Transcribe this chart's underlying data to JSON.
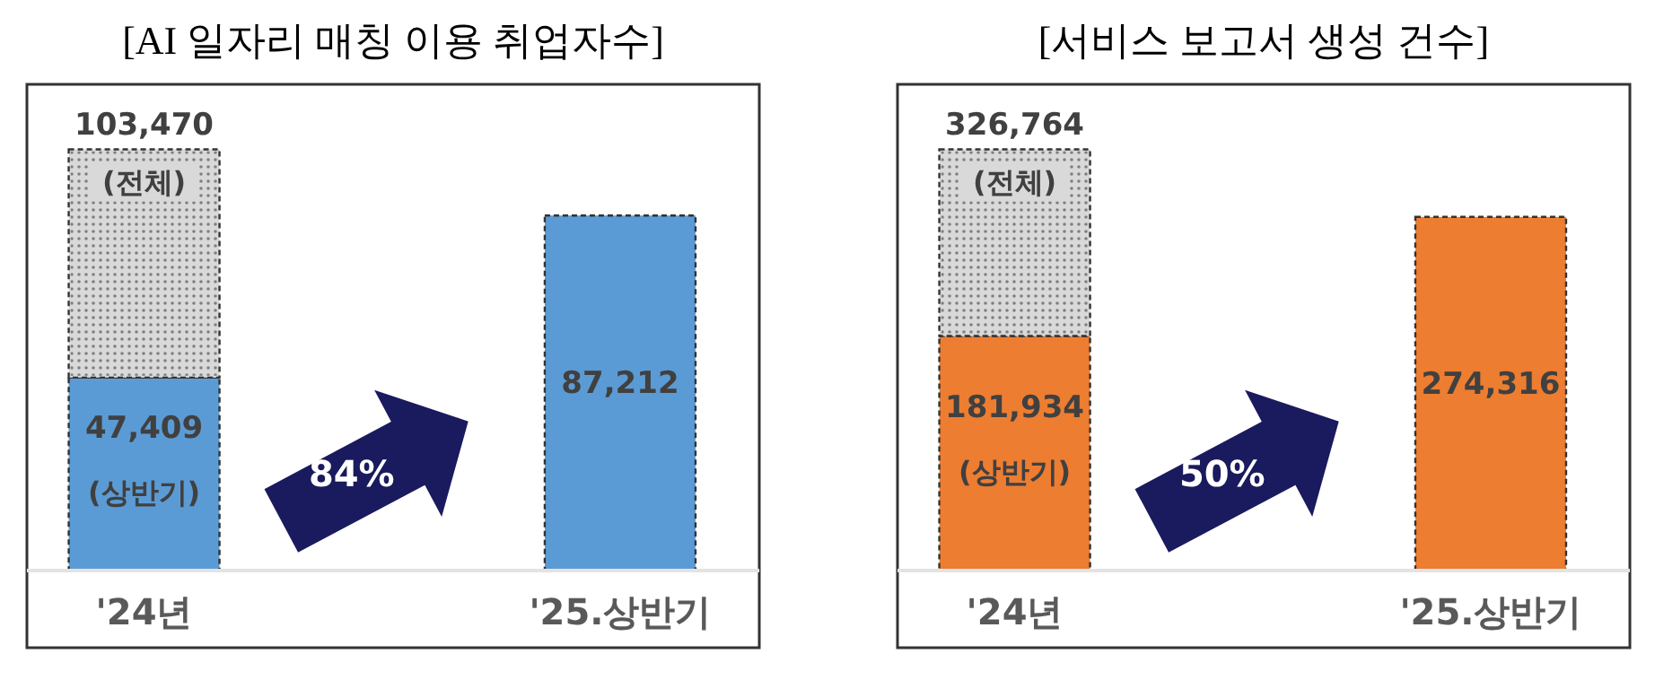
{
  "chart_data": [
    {
      "type": "bar",
      "title": "[AI 일자리 매칭 이용 취업자수]",
      "categories": [
        "'24년",
        "'25.상반기"
      ],
      "stacked": true,
      "series": [
        {
          "color": "#5b9bd5",
          "values": [
            47409,
            87212
          ],
          "value_labels": [
            "47,409",
            "87,212"
          ]
        },
        {
          "color": "#d9d9d9",
          "values": [
            56061,
            null
          ]
        }
      ],
      "totals": [
        "103,470",
        null
      ],
      "annotations": [
        "(전체)",
        "(상반기)",
        "84%"
      ]
    },
    {
      "type": "bar",
      "title": "[서비스 보고서 생성 건수]",
      "categories": [
        "'24년",
        "'25.상반기"
      ],
      "stacked": true,
      "series": [
        {
          "color": "#ed7d31",
          "values": [
            181934,
            274316
          ],
          "value_labels": [
            "181,934",
            "274,316"
          ]
        },
        {
          "color": "#d9d9d9",
          "values": [
            144830,
            null
          ]
        }
      ],
      "totals": [
        "326,764",
        null
      ],
      "annotations": [
        "(전체)",
        "(상반기)",
        "50%"
      ]
    }
  ]
}
